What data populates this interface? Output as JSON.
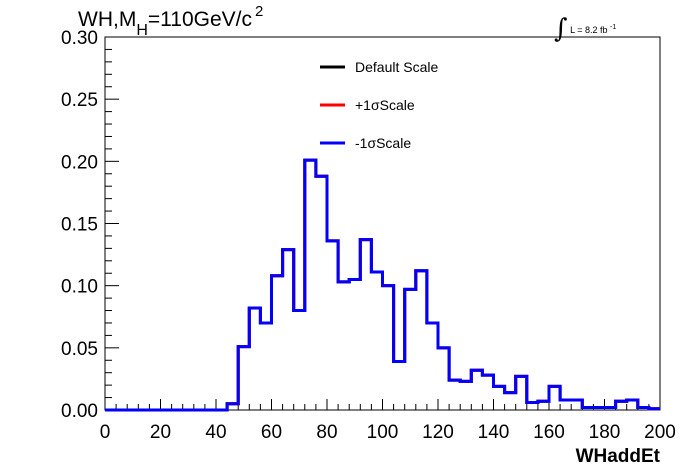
{
  "title": {
    "prefix": "WH,M",
    "subscript": "H",
    "mass": "=110GeV/c",
    "superscript": "2"
  },
  "luminosity": {
    "integral": "∫",
    "text": "L = 8.2 fb",
    "superscript": "-1"
  },
  "legend": {
    "placement": "top-center",
    "entries": [
      {
        "label": "Default Scale",
        "color": "#000000"
      },
      {
        "label": "+1σScale",
        "color": "#ff0000"
      },
      {
        "label": "-1σScale",
        "color": "#0000ff"
      }
    ]
  },
  "chart_data": {
    "type": "line",
    "style": "step-histogram",
    "xlabel": "WHaddEt",
    "ylabel": "",
    "xlim": [
      0,
      200
    ],
    "ylim": [
      0,
      0.3
    ],
    "x_ticks": [
      "0",
      "20",
      "40",
      "60",
      "80",
      "100",
      "120",
      "140",
      "160",
      "180",
      "200"
    ],
    "y_ticks": [
      "0.00",
      "0.05",
      "0.10",
      "0.15",
      "0.20",
      "0.25",
      "0.30"
    ],
    "grid": false,
    "bin_edges": [
      0,
      4,
      8,
      12,
      16,
      20,
      24,
      28,
      32,
      36,
      40,
      44,
      48,
      52,
      56,
      60,
      64,
      68,
      72,
      76,
      80,
      84,
      88,
      92,
      96,
      100,
      104,
      108,
      112,
      116,
      120,
      124,
      128,
      132,
      136,
      140,
      144,
      148,
      152,
      156,
      160,
      164,
      168,
      172,
      176,
      180,
      184,
      188,
      192,
      196,
      200
    ],
    "series": [
      {
        "name": "Default Scale",
        "color": "#000000",
        "values": [
          0,
          0,
          0,
          0,
          0,
          0,
          0,
          0,
          0,
          0,
          0,
          0.005,
          0.051,
          0.082,
          0.07,
          0.108,
          0.129,
          0.08,
          0.201,
          0.188,
          0.136,
          0.103,
          0.105,
          0.137,
          0.111,
          0.1,
          0.039,
          0.097,
          0.112,
          0.07,
          0.05,
          0.024,
          0.023,
          0.032,
          0.028,
          0.019,
          0.014,
          0.027,
          0.006,
          0.007,
          0.019,
          0.008,
          0.008,
          0.002,
          0.002,
          0.002,
          0.007,
          0.008,
          0.002,
          0.001
        ]
      },
      {
        "name": "+1σScale",
        "color": "#ff0000",
        "values": [
          0,
          0,
          0,
          0,
          0,
          0,
          0,
          0,
          0,
          0,
          0,
          0.005,
          0.051,
          0.082,
          0.07,
          0.108,
          0.129,
          0.08,
          0.201,
          0.188,
          0.136,
          0.103,
          0.105,
          0.137,
          0.111,
          0.1,
          0.039,
          0.097,
          0.112,
          0.07,
          0.05,
          0.024,
          0.023,
          0.032,
          0.028,
          0.019,
          0.014,
          0.027,
          0.006,
          0.007,
          0.019,
          0.008,
          0.008,
          0.002,
          0.002,
          0.002,
          0.007,
          0.008,
          0.002,
          0.001
        ]
      },
      {
        "name": "-1σScale",
        "color": "#0000ff",
        "values": [
          0,
          0,
          0,
          0,
          0,
          0,
          0,
          0,
          0,
          0,
          0,
          0.005,
          0.051,
          0.082,
          0.07,
          0.108,
          0.129,
          0.08,
          0.201,
          0.188,
          0.136,
          0.103,
          0.105,
          0.137,
          0.111,
          0.1,
          0.039,
          0.097,
          0.112,
          0.07,
          0.05,
          0.024,
          0.023,
          0.032,
          0.028,
          0.019,
          0.014,
          0.027,
          0.006,
          0.007,
          0.019,
          0.008,
          0.008,
          0.002,
          0.002,
          0.002,
          0.007,
          0.008,
          0.002,
          0.001
        ]
      }
    ]
  }
}
